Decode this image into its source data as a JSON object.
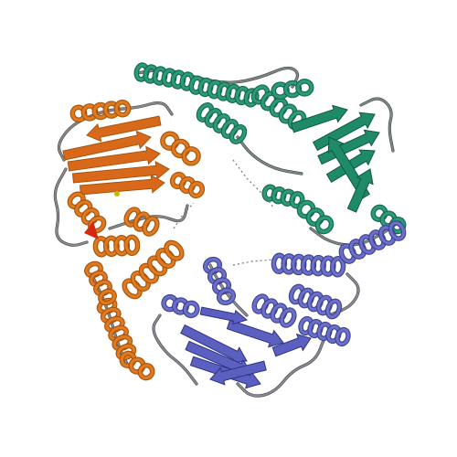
{
  "image": {
    "subject": "protein-trimer-ribbon",
    "background": "#ffffff"
  },
  "chains": [
    {
      "id": "A",
      "name": "chain-orange",
      "colors": {
        "helix": "#e07a1f",
        "helix_dark": "#a9530c",
        "sheet": "#d9691a",
        "coil": "#8a8a8a",
        "accent": "#c63a10"
      }
    },
    {
      "id": "B",
      "name": "chain-teal",
      "colors": {
        "helix": "#2a9a78",
        "helix_dark": "#17684f",
        "sheet": "#1e8a68",
        "coil": "#7a8a86",
        "accent": "#0f5a44"
      }
    },
    {
      "id": "C",
      "name": "chain-blue",
      "colors": {
        "helix": "#6a6fcc",
        "helix_dark": "#3f4390",
        "sheet": "#5b60c0",
        "coil": "#8a8a96",
        "accent": "#2f3384"
      }
    }
  ],
  "linker_color": "#777777",
  "highlight_colors": [
    "#d22a10",
    "#c9b800"
  ]
}
